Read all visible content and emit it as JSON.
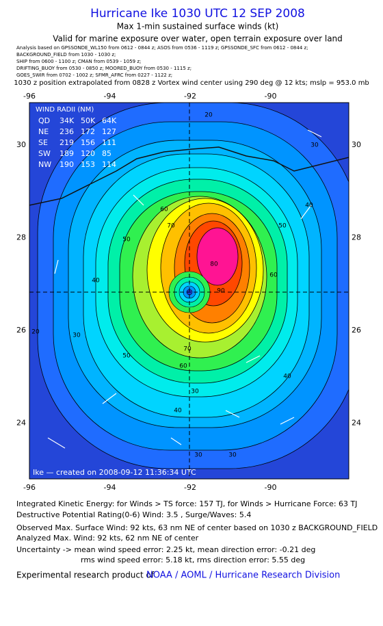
{
  "header": {
    "title": "Hurricane Ike 1030 UTC 12 SEP 2008",
    "subtitle": "Max 1-min sustained surface winds (kt)",
    "valid": "Valid for marine exposure over water, open terrain exposure over land",
    "analysis": [
      "Analysis based on  GPSSONDE_WL150 from 0612 - 0844 z;  ASOS from 0536 - 1119 z;  GPSSONDE_SFC from 0612 - 0844 z;",
      "BACKGROUND_FIELD from 1030 - 1030 z;",
      "SHIP from 0600 - 1100 z;  CMAN from 0539 - 1059 z;",
      "DRIFTING_BUOY from 0530 - 0850 z;  MOORED_BUOY from 0530 - 1115 z;",
      "GOES_SWIR from 0702 - 1002 z;  SFMR_AFRC from 0227 - 1122 z;"
    ],
    "position": "1030 z position extrapolated from 0828 z Vortex wind center using 290 deg @ 12 kts; mslp = 953.0 mb"
  },
  "map": {
    "lon_ticks": [
      "-96",
      "-94",
      "-92",
      "-90"
    ],
    "lat_ticks": [
      "30",
      "28",
      "26",
      "24"
    ],
    "wind_radii": {
      "title": "WIND RADII (NM)",
      "rows": [
        [
          "QD",
          "34K",
          "50K",
          "64K"
        ],
        [
          "NE",
          "236",
          "172",
          "127"
        ],
        [
          "SE",
          "219",
          "156",
          "111"
        ],
        [
          "SW",
          "189",
          "120",
          "85"
        ],
        [
          "NW",
          "190",
          "153",
          "114"
        ]
      ]
    },
    "contour_labels": [
      "20",
      "30",
      "40",
      "50",
      "60",
      "70",
      "80",
      "90",
      "60",
      "50",
      "40",
      "30",
      "20",
      "30",
      "30",
      "40",
      "70",
      "60",
      "50",
      "40",
      "30"
    ],
    "credit": "Ike — created on 2008-09-12 11:36:34 UTC"
  },
  "footer": {
    "lines": [
      "Integrated Kinetic Energy:  for Winds > TS force: 157 TJ,  for Winds > Hurricane Force: 63 TJ",
      "Destructive Potential Rating(0-6)   Wind: 3.5 , Surge/Waves: 5.4",
      "Observed Max. Surface Wind: 92 kts, 63 nm NE of center based on 1030 z BACKGROUND_FIELD",
      "Analyzed Max. Wind: 92 kts, 62 nm NE of center",
      "Uncertainty -> mean wind speed error: 2.25 kt,   mean direction error:  -0.21 deg",
      "rms wind speed error: 5.18 kt,   rms direction error: 5.55 deg"
    ],
    "product": "Experimental research product of",
    "org": "NOAA / AOML / Hurricane Research Division"
  }
}
